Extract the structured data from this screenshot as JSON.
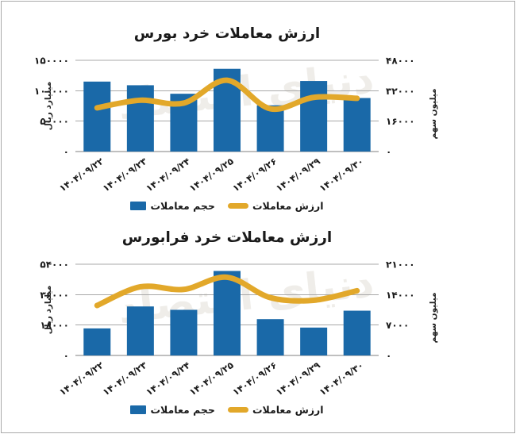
{
  "frame": {
    "border_color": "#a9a9a9",
    "background": "#ffffff"
  },
  "watermark": {
    "text": "دنیای اقتصاد",
    "color": "#e2dfd8"
  },
  "colors": {
    "bar": "#1a69a8",
    "line": "#e2a82a",
    "grid": "#a8a8a8",
    "axis": "#7f7f7f",
    "text": "#1a1a1a"
  },
  "legend": {
    "items": [
      {
        "label": "حجم معاملات",
        "swatch": "bar",
        "color": "#1a69a8"
      },
      {
        "label": "ارزش معاملات",
        "swatch": "line",
        "color": "#e2a82a"
      }
    ]
  },
  "chart_data": [
    {
      "type": "bar+line",
      "title": "ارزش معاملات خرد بورس",
      "categories": [
        "۱۴۰۴/۰۹/۲۲",
        "۱۴۰۴/۰۹/۲۳",
        "۱۴۰۴/۰۹/۲۴",
        "۱۴۰۴/۰۹/۲۵",
        "۱۴۰۴/۰۹/۲۶",
        "۱۴۰۴/۰۹/۲۹",
        "۱۴۰۴/۰۹/۳۰"
      ],
      "series": [
        {
          "name": "حجم معاملات",
          "type": "bar",
          "axis": "left",
          "values": [
            115000,
            109000,
            95000,
            136000,
            76000,
            116000,
            88000
          ]
        },
        {
          "name": "ارزش معاملات",
          "type": "line",
          "axis": "right",
          "values": [
            23000,
            27000,
            25500,
            37500,
            22500,
            28500,
            28000
          ]
        }
      ],
      "left_axis": {
        "title": "میلیارد ریال",
        "max": 150000,
        "min": 0,
        "ticks": [
          {
            "value": 150000,
            "label": "۱۵۰۰۰۰"
          },
          {
            "value": 100000,
            "label": "۱۰۰۰۰۰"
          },
          {
            "value": 50000,
            "label": "۵۰۰۰۰"
          },
          {
            "value": 0,
            "label": "۰"
          }
        ]
      },
      "right_axis": {
        "title": "میلیون سهم",
        "max": 48000,
        "min": 0,
        "ticks": [
          {
            "value": 48000,
            "label": "۴۸۰۰۰"
          },
          {
            "value": 32000,
            "label": "۳۲۰۰۰"
          },
          {
            "value": 16000,
            "label": "۱۶۰۰۰"
          },
          {
            "value": 0,
            "label": "۰"
          }
        ]
      },
      "grid": true,
      "legend_position": "bottom"
    },
    {
      "type": "bar+line",
      "title": "ارزش معاملات خرد فرابورس",
      "categories": [
        "۱۴۰۴/۰۹/۲۲",
        "۱۴۰۴/۰۹/۲۳",
        "۱۴۰۴/۰۹/۲۴",
        "۱۴۰۴/۰۹/۲۵",
        "۱۴۰۴/۰۹/۲۶",
        "۱۴۰۴/۰۹/۲۹",
        "۱۴۰۴/۰۹/۳۰"
      ],
      "series": [
        {
          "name": "حجم معاملات",
          "type": "bar",
          "axis": "left",
          "values": [
            16000,
            29000,
            27000,
            50000,
            21500,
            16500,
            26500
          ]
        },
        {
          "name": "ارزش معاملات",
          "type": "line",
          "axis": "right",
          "values": [
            11500,
            15800,
            15200,
            18000,
            13300,
            12700,
            14900
          ]
        }
      ],
      "left_axis": {
        "title": "میلیارد ریال",
        "max": 54000,
        "min": 0,
        "ticks": [
          {
            "value": 54000,
            "label": "۵۴۰۰۰"
          },
          {
            "value": 36000,
            "label": "۳۶۰۰۰"
          },
          {
            "value": 18000,
            "label": "۱۸۰۰۰"
          },
          {
            "value": 0,
            "label": "۰"
          }
        ]
      },
      "right_axis": {
        "title": "میلیون سهم",
        "max": 21000,
        "min": 0,
        "ticks": [
          {
            "value": 21000,
            "label": "۲۱۰۰۰"
          },
          {
            "value": 14000,
            "label": "۱۴۰۰۰"
          },
          {
            "value": 7000,
            "label": "۷۰۰۰"
          },
          {
            "value": 0,
            "label": "۰"
          }
        ]
      },
      "grid": true,
      "legend_position": "bottom"
    }
  ]
}
